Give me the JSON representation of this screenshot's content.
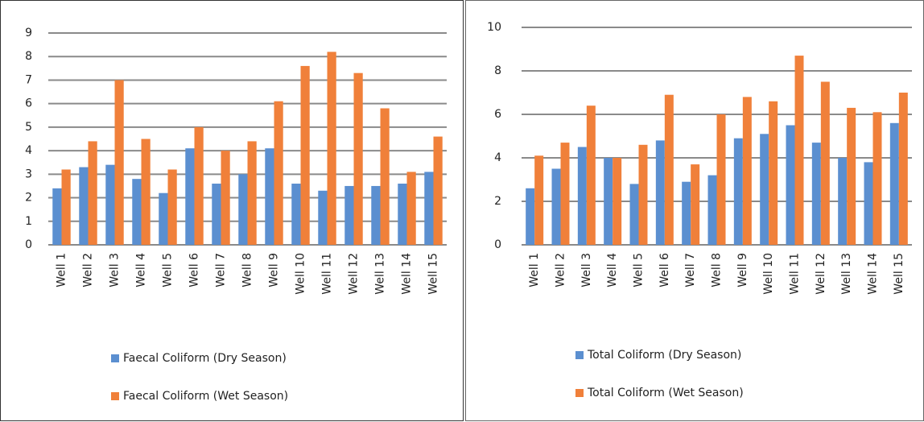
{
  "chart_data": [
    {
      "type": "bar",
      "categories": [
        "Well 1",
        "Well 2",
        "Well 3",
        "Well 4",
        "Well 5",
        "Well 6",
        "Well 7",
        "Well 8",
        "Well 9",
        "Well 10",
        "Well 11",
        "Well 12",
        "Well 13",
        "Well 14",
        "Well 15"
      ],
      "series": [
        {
          "name": "Faecal Coliform (Dry Season)",
          "color": "#5b8fd0",
          "values": [
            2.4,
            3.3,
            3.4,
            2.8,
            2.2,
            4.1,
            2.6,
            3.0,
            4.1,
            2.6,
            2.3,
            2.5,
            2.5,
            2.6,
            3.1
          ]
        },
        {
          "name": "Faecal Coliform (Wet Season)",
          "color": "#f0803a",
          "values": [
            3.2,
            4.4,
            7.0,
            4.5,
            3.2,
            5.0,
            4.0,
            4.4,
            6.1,
            7.6,
            8.2,
            7.3,
            5.8,
            3.1,
            4.6
          ]
        }
      ],
      "ylim": [
        0,
        9
      ],
      "yticks": [
        0,
        1,
        2,
        3,
        4,
        5,
        6,
        7,
        8,
        9
      ],
      "grid": true,
      "legend": "bottom"
    },
    {
      "type": "bar",
      "categories": [
        "Well 1",
        "Well 2",
        "Well 3",
        "Well 4",
        "Well 5",
        "Well 6",
        "Well 7",
        "Well 8",
        "Well 9",
        "Well 10",
        "Well 11",
        "Well 12",
        "Well 13",
        "Well 14",
        "Well 15"
      ],
      "series": [
        {
          "name": "Total Coliform (Dry Season)",
          "color": "#5b8fd0",
          "values": [
            2.6,
            3.5,
            4.5,
            4.0,
            2.8,
            4.8,
            2.9,
            3.2,
            4.9,
            5.1,
            5.5,
            4.7,
            4.0,
            3.8,
            5.6
          ]
        },
        {
          "name": "Total Coliform (Wet Season)",
          "color": "#f0803a",
          "values": [
            4.1,
            4.7,
            6.4,
            4.0,
            4.6,
            6.9,
            3.7,
            6.0,
            6.8,
            6.6,
            8.7,
            7.5,
            6.3,
            6.1,
            7.0
          ]
        }
      ],
      "ylim": [
        0,
        10
      ],
      "yticks": [
        0,
        2,
        4,
        6,
        8,
        10
      ],
      "grid": true,
      "legend": "bottom"
    }
  ]
}
